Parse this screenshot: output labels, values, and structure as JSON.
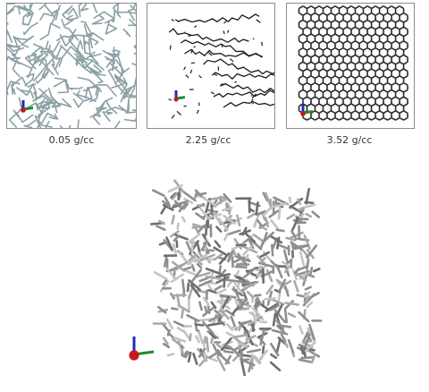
{
  "panels": [
    {
      "caption": "0.05 g/cc",
      "structure": "sparse-porous-network",
      "stroke": "#8aa0a4"
    },
    {
      "caption": "2.25 g/cc",
      "structure": "layered-chains",
      "stroke": "#1a1a1a"
    },
    {
      "caption": "3.52 g/cc",
      "structure": "honeycomb-lattice",
      "stroke": "#2a2a2a"
    }
  ],
  "render": {
    "structure": "3d-porous-network",
    "stroke": "#8f8f8f"
  },
  "axis_colors": {
    "x": "#c8171b",
    "y": "#1e8c2e",
    "z": "#1b2fb3"
  }
}
